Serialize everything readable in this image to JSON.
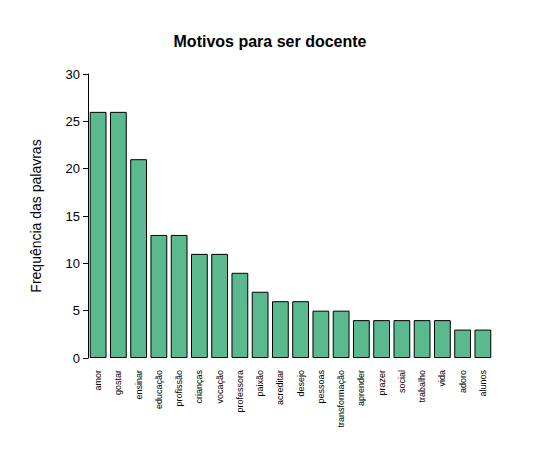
{
  "chart_data": {
    "type": "bar",
    "title": "Motivos para ser docente",
    "y_label": "Frequência das palavras",
    "categories": [
      "amor",
      "gostar",
      "ensinar",
      "educação",
      "profissão",
      "crianças",
      "vocação",
      "professora",
      "paixão",
      "acreditar",
      "desejo",
      "pessoas",
      "transformação",
      "aprender",
      "prazer",
      "social",
      "trabalho",
      "vida",
      "adoro",
      "alunos"
    ],
    "values": [
      26,
      26,
      21,
      13,
      13,
      11,
      11,
      9,
      7,
      6,
      6,
      5,
      5,
      4,
      4,
      4,
      4,
      4,
      3,
      3
    ],
    "color": "#5ab98f",
    "ylim": [
      0,
      30
    ],
    "yticks": [
      0,
      5,
      10,
      15,
      20,
      25,
      30
    ],
    "grid": false
  }
}
